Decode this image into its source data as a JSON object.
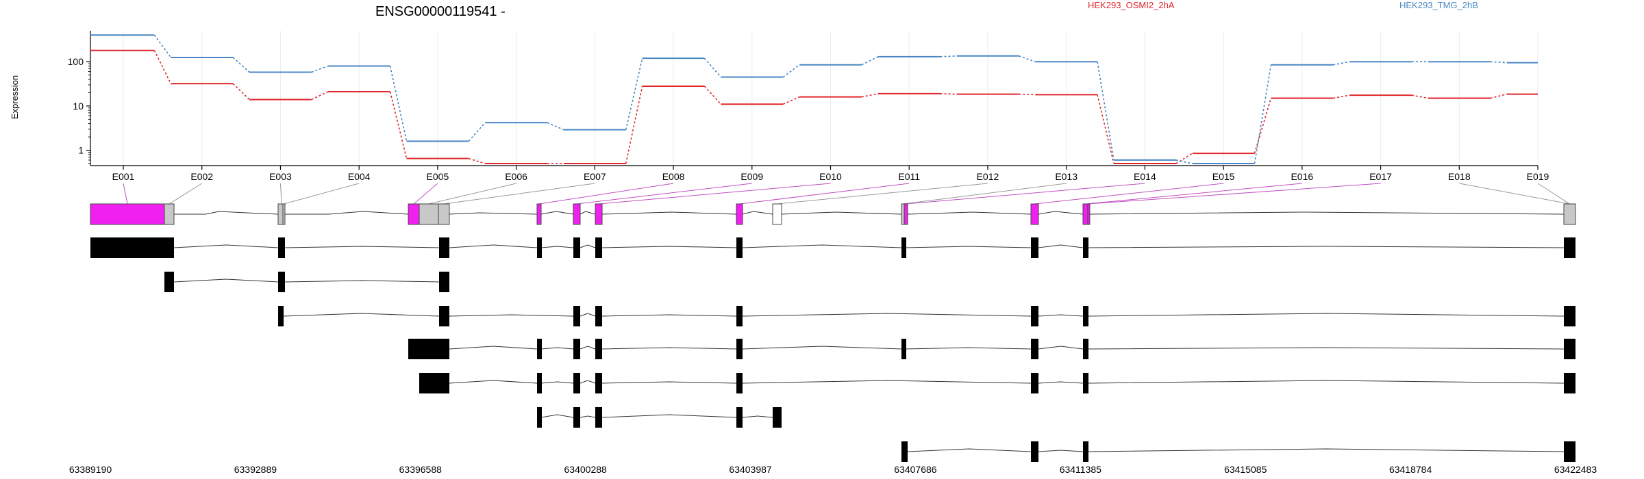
{
  "chart_data": {
    "type": "line",
    "title": "ENSG00000119541 -",
    "ylabel": "Expression",
    "xlabel": "",
    "y_scale": "log",
    "y_ticks": [
      "1",
      "10",
      "100"
    ],
    "x_tick_labels": [
      "E001",
      "E002",
      "E003",
      "E004",
      "E005",
      "E006",
      "E007",
      "E008",
      "E009",
      "E010",
      "E011",
      "E012",
      "E013",
      "E014",
      "E015",
      "E016",
      "E017",
      "E018",
      "E019"
    ],
    "grid": "vertical",
    "legend_position": "top",
    "series": [
      {
        "name": "HEK293_OSMI2_2hA",
        "color": "#e0262b",
        "values": [
          180,
          32,
          14,
          21,
          0.65,
          0.5,
          0.5,
          28,
          11,
          16,
          19,
          18.5,
          18,
          0.5,
          0.85,
          15,
          17.5,
          15,
          18.5
        ]
      },
      {
        "name": "HEK293_TMG_2hB",
        "color": "#4a86c5",
        "values": [
          400,
          125,
          58,
          80,
          1.6,
          4.2,
          2.9,
          120,
          45,
          85,
          130,
          135,
          100,
          0.6,
          0.5,
          85,
          100,
          100,
          95
        ]
      }
    ],
    "coordinate_ticks": [
      "63389190",
      "63392889",
      "63396588",
      "63400288",
      "63403987",
      "63407686",
      "63411385",
      "63415085",
      "63418784",
      "63422483"
    ],
    "coordinate_range": [
      63389190,
      63422483
    ],
    "exon_highlight_color": "#f020f0",
    "exon_default_color": "#c8c8c8"
  }
}
